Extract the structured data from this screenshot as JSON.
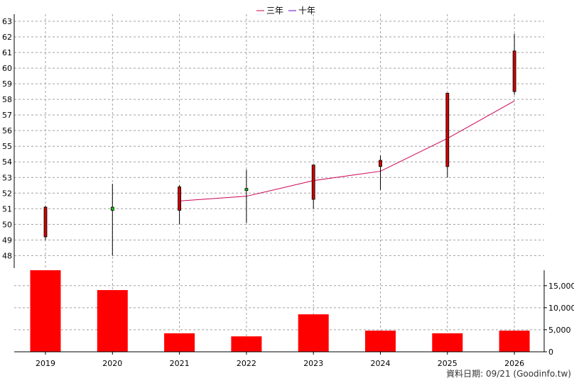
{
  "legend": {
    "items": [
      {
        "label": "三年",
        "color": "#cc0055"
      },
      {
        "label": "十年",
        "color": "#6600cc"
      }
    ]
  },
  "footer": {
    "source": "資料日期: 09/21  (Goodinfo.tw)"
  },
  "chart_data": [
    {
      "type": "candlestick",
      "categories": [
        "2019",
        "2020",
        "2021",
        "2022",
        "2023",
        "2024",
        "2025",
        "2026"
      ],
      "ylim": [
        47.2,
        63
      ],
      "yticks": [
        48,
        49,
        50,
        51,
        52,
        53,
        54,
        55,
        56,
        57,
        58,
        59,
        60,
        61,
        62,
        63
      ],
      "grid": true,
      "candles": [
        {
          "open": 51.1,
          "close": 49.2,
          "high": 51.2,
          "low": 49.0
        },
        {
          "open": 50.9,
          "close": 51.1,
          "high": 52.6,
          "low": 48.0
        },
        {
          "open": 52.4,
          "close": 50.9,
          "high": 52.5,
          "low": 50.0
        },
        {
          "open": 52.2,
          "close": 52.3,
          "high": 53.5,
          "low": 50.1
        },
        {
          "open": 53.8,
          "close": 51.6,
          "high": 53.8,
          "low": 51.0
        },
        {
          "open": 54.1,
          "close": 53.7,
          "high": 54.4,
          "low": 52.2
        },
        {
          "open": 58.4,
          "close": 53.7,
          "high": 58.4,
          "low": 53.0
        },
        {
          "open": 61.1,
          "close": 58.5,
          "high": 62.2,
          "low": 58.3
        }
      ],
      "series": [
        {
          "name": "三年",
          "color": "#cc0055",
          "values": [
            null,
            null,
            51.5,
            51.8,
            52.8,
            53.4,
            55.5,
            57.9
          ]
        }
      ]
    },
    {
      "type": "bar",
      "categories": [
        "2019",
        "2020",
        "2021",
        "2022",
        "2023",
        "2024",
        "2025",
        "2026"
      ],
      "values": [
        18500,
        14000,
        4200,
        3500,
        8500,
        4800,
        4200,
        4800
      ],
      "ylim": [
        0,
        18500
      ],
      "yticks": [
        0,
        5000,
        10000,
        15000
      ],
      "ytick_labels": [
        "0",
        "5,000",
        "10,000",
        "15,000"
      ],
      "color": "#ff0000",
      "grid": true
    }
  ]
}
